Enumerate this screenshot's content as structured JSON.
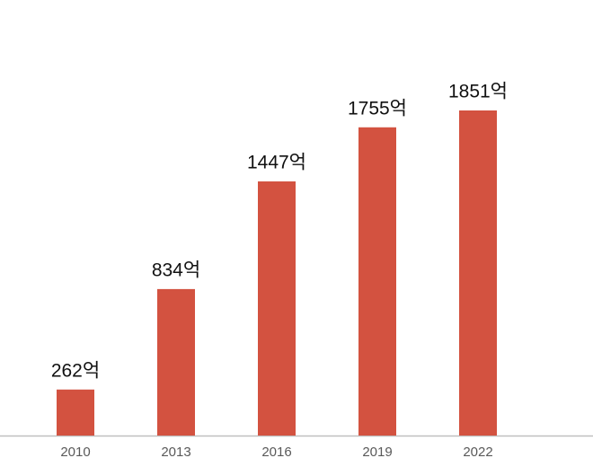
{
  "chart_data": {
    "type": "bar",
    "categories": [
      "2010",
      "2013",
      "2016",
      "2019",
      "2022"
    ],
    "values": [
      262,
      834,
      1447,
      1755,
      1851
    ],
    "value_labels": [
      "262억",
      "834억",
      "1447억",
      "1755억",
      "1851억"
    ],
    "color": "#d35240"
  }
}
